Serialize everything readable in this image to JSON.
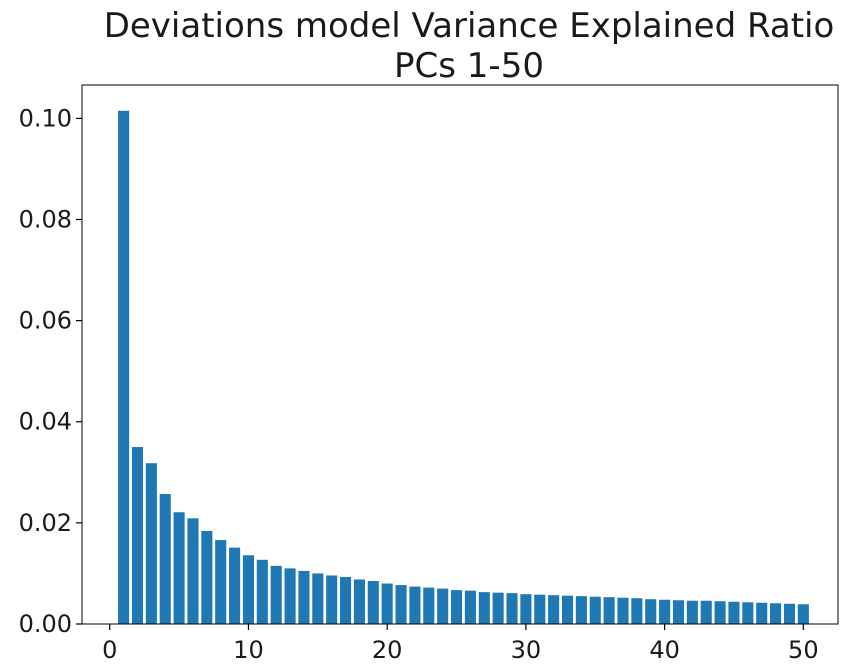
{
  "chart_data": {
    "type": "bar",
    "title_line1": "Deviations model Variance Explained Ratio",
    "title_line2": "PCs 1-50",
    "xlabel": "",
    "ylabel": "",
    "x": [
      1,
      2,
      3,
      4,
      5,
      6,
      7,
      8,
      9,
      10,
      11,
      12,
      13,
      14,
      15,
      16,
      17,
      18,
      19,
      20,
      21,
      22,
      23,
      24,
      25,
      26,
      27,
      28,
      29,
      30,
      31,
      32,
      33,
      34,
      35,
      36,
      37,
      38,
      39,
      40,
      41,
      42,
      43,
      44,
      45,
      46,
      47,
      48,
      49,
      50
    ],
    "values": [
      0.1015,
      0.035,
      0.0318,
      0.0257,
      0.0221,
      0.0209,
      0.0184,
      0.0166,
      0.0151,
      0.0136,
      0.0127,
      0.0115,
      0.011,
      0.0105,
      0.01,
      0.0096,
      0.0093,
      0.0088,
      0.0085,
      0.008,
      0.0077,
      0.0074,
      0.0072,
      0.007,
      0.0067,
      0.0066,
      0.0063,
      0.0062,
      0.0061,
      0.0059,
      0.0058,
      0.0057,
      0.0056,
      0.0055,
      0.0054,
      0.0053,
      0.0052,
      0.0051,
      0.0049,
      0.0048,
      0.0047,
      0.0046,
      0.0046,
      0.0045,
      0.0044,
      0.0043,
      0.0042,
      0.0041,
      0.004,
      0.0039
    ],
    "xlim": [
      -2,
      52.5
    ],
    "ylim": [
      0,
      0.1066
    ],
    "xticks": [
      0,
      10,
      20,
      30,
      40,
      50
    ],
    "xtick_labels": [
      "0",
      "10",
      "20",
      "30",
      "40",
      "50"
    ],
    "yticks": [
      0,
      0.02,
      0.04,
      0.06,
      0.08,
      0.1
    ],
    "ytick_labels": [
      "0.00",
      "0.02",
      "0.04",
      "0.06",
      "0.08",
      "0.10"
    ],
    "bar_color": "#1f77b4",
    "grid": false,
    "legend": "none"
  }
}
